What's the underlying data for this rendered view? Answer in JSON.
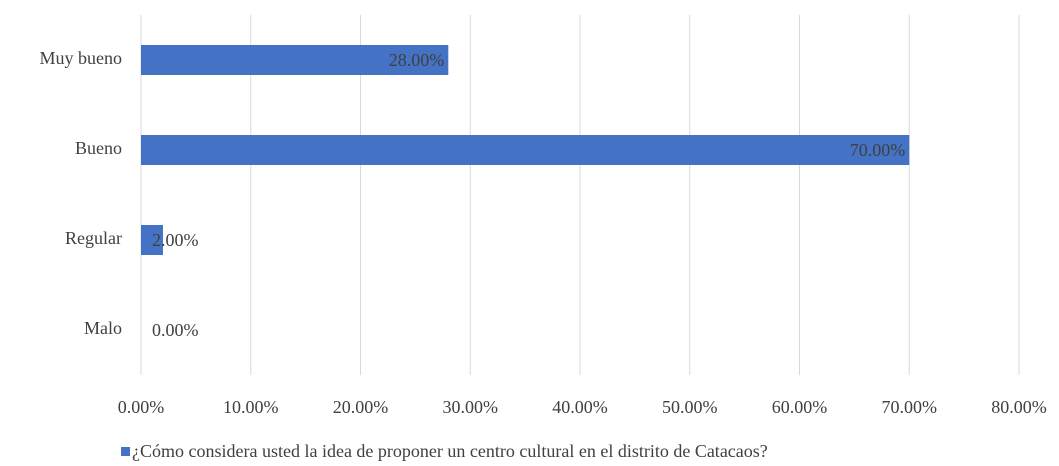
{
  "chart_data": {
    "type": "barh",
    "categories": [
      "Muy bueno",
      "Bueno",
      "Regular",
      "Malo"
    ],
    "series": [
      {
        "name": "¿Cómo considera usted la idea de proponer un centro cultural en el distrito de Catacaos?",
        "color": "#4472c4",
        "values": [
          28,
          70,
          2,
          0
        ],
        "value_labels": [
          "28.00%",
          "70.00%",
          "2.00%",
          "0.00%"
        ]
      }
    ],
    "xlim": [
      0,
      80
    ],
    "xticks": [
      {
        "value": 0,
        "label": "0.00%"
      },
      {
        "value": 10,
        "label": "10.00%"
      },
      {
        "value": 20,
        "label": "20.00%"
      },
      {
        "value": 30,
        "label": "30.00%"
      },
      {
        "value": 40,
        "label": "40.00%"
      },
      {
        "value": 50,
        "label": "50.00%"
      },
      {
        "value": 60,
        "label": "60.00%"
      },
      {
        "value": 70,
        "label": "70.00%"
      },
      {
        "value": 80,
        "label": "80.00%"
      }
    ],
    "grid": true,
    "legend": "bottom"
  }
}
